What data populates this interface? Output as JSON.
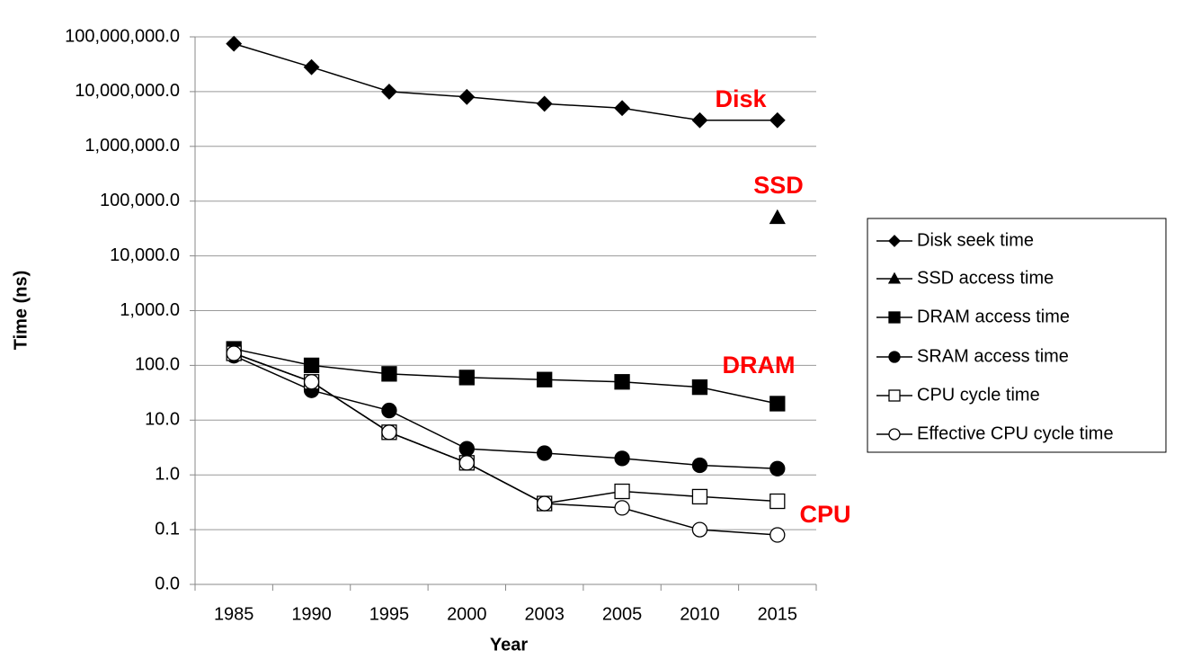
{
  "chart_data": {
    "type": "line",
    "x_label": "Year",
    "y_label": "Time (ns)",
    "categories": [
      "1985",
      "1990",
      "1995",
      "2000",
      "2003",
      "2005",
      "2010",
      "2015"
    ],
    "log_scale": true,
    "grid": true,
    "legend_position": "right",
    "ylim": [
      0.01,
      100000000
    ],
    "yticks": [
      {
        "value": 0.01,
        "label": "0.0"
      },
      0.1,
      {
        "value": 1,
        "label": "1.0"
      },
      {
        "value": 10,
        "label": "10.0"
      },
      {
        "value": 100,
        "label": "100.0"
      },
      {
        "value": 1000,
        "label": "1,000.0"
      },
      {
        "value": 10000,
        "label": "10,000.0"
      },
      {
        "value": 100000,
        "label": "100,000.0"
      },
      {
        "value": 1000000,
        "label": "1,000,000.0"
      },
      {
        "value": 10000000,
        "label": "10,000,000.0"
      },
      {
        "value": 100000000,
        "label": "100,000,000.0"
      }
    ],
    "series": [
      {
        "name": "Disk seek time",
        "color": "#000000",
        "marker": "diamond",
        "values": [
          75000000,
          28000000,
          10000000,
          8000000,
          6000000,
          5000000,
          3000000,
          3000000
        ]
      },
      {
        "name": "SSD access time",
        "color": "#000000",
        "marker": "triangle",
        "values": [
          null,
          null,
          null,
          null,
          null,
          null,
          null,
          50000
        ]
      },
      {
        "name": "DRAM access time",
        "color": "#000000",
        "marker": "square",
        "values": [
          200,
          100,
          70,
          60,
          55,
          50,
          40,
          20
        ]
      },
      {
        "name": "SRAM access time",
        "color": "#000000",
        "marker": "circle",
        "values": [
          150,
          35,
          15,
          3,
          2.5,
          2,
          1.5,
          1.3
        ]
      },
      {
        "name": "CPU cycle time",
        "color": "#000000",
        "marker": "square-open",
        "values": [
          166,
          50,
          6,
          1.66,
          0.3,
          0.5,
          0.4,
          0.33
        ]
      },
      {
        "name": "Effective CPU cycle time",
        "color": "#000000",
        "marker": "circle-open",
        "values": [
          166,
          50,
          6,
          1.66,
          0.3,
          0.25,
          0.1,
          0.08
        ]
      }
    ],
    "annotations": [
      {
        "text": "Disk",
        "color": "#ff0000"
      },
      {
        "text": "SSD",
        "color": "#ff0000"
      },
      {
        "text": "DRAM",
        "color": "#ff0000"
      },
      {
        "text": "CPU",
        "color": "#ff0000"
      }
    ]
  }
}
